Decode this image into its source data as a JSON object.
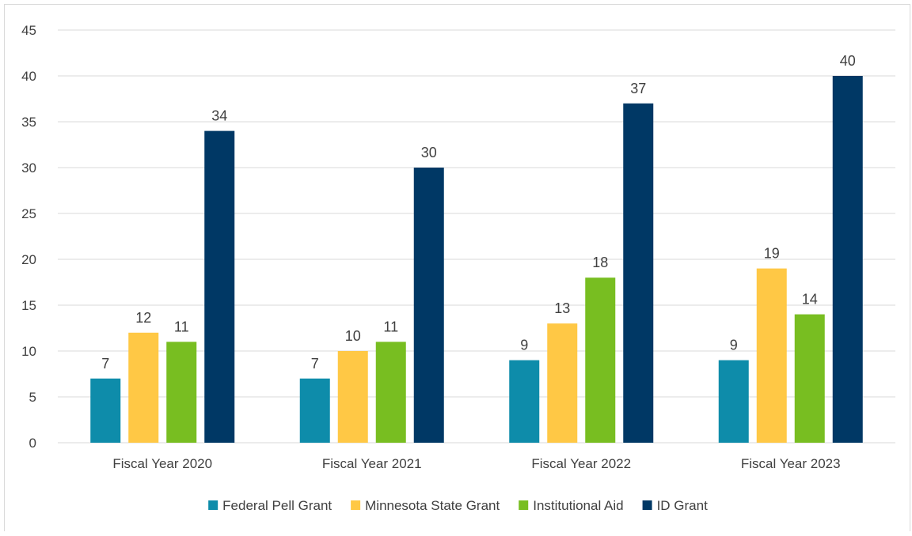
{
  "chart_data": {
    "type": "bar",
    "title": "",
    "xlabel": "",
    "ylabel": "",
    "categories": [
      "Fiscal Year 2020",
      "Fiscal Year 2021",
      "Fiscal Year 2022",
      "Fiscal Year 2023"
    ],
    "series": [
      {
        "name": "Federal Pell Grant",
        "color": "#0E8CAA",
        "values": [
          7,
          7,
          9,
          9
        ]
      },
      {
        "name": "Minnesota State Grant",
        "color": "#FFC845",
        "values": [
          12,
          10,
          13,
          19
        ]
      },
      {
        "name": "Institutional Aid",
        "color": "#78BE21",
        "values": [
          11,
          11,
          18,
          14
        ]
      },
      {
        "name": "ID Grant",
        "color": "#003865",
        "values": [
          34,
          30,
          37,
          40
        ]
      }
    ],
    "ylim": [
      0,
      45
    ],
    "yticks": [
      0,
      5,
      10,
      15,
      20,
      25,
      30,
      35,
      40,
      45
    ],
    "grid": true,
    "data_labels": true,
    "legend_position": "bottom"
  }
}
